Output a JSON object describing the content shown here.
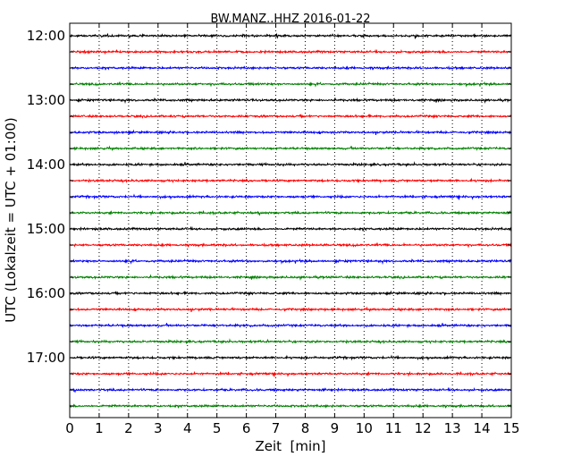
{
  "chart_data": {
    "type": "line",
    "title": "BW.MANZ..HHZ 2016-01-22",
    "xlabel": "Zeit  [min]",
    "ylabel": "UTC (Lokalzeit = UTC + 01:00)",
    "xlim": [
      0,
      15
    ],
    "x_ticks": [
      0,
      1,
      2,
      3,
      4,
      5,
      6,
      7,
      8,
      9,
      10,
      11,
      12,
      13,
      14,
      15
    ],
    "y_tick_labels": [
      "12:00",
      "13:00",
      "14:00",
      "15:00",
      "16:00",
      "17:00"
    ],
    "grid": "vertical-dotted",
    "series_colors": [
      "#000000",
      "#ff0000",
      "#0000ff",
      "#008000"
    ],
    "traces": [
      {
        "start": "12:00",
        "color": "#000000"
      },
      {
        "start": "12:15",
        "color": "#ff0000"
      },
      {
        "start": "12:30",
        "color": "#0000ff"
      },
      {
        "start": "12:45",
        "color": "#008000"
      },
      {
        "start": "13:00",
        "color": "#000000"
      },
      {
        "start": "13:15",
        "color": "#ff0000"
      },
      {
        "start": "13:30",
        "color": "#0000ff"
      },
      {
        "start": "13:45",
        "color": "#008000"
      },
      {
        "start": "14:00",
        "color": "#000000"
      },
      {
        "start": "14:15",
        "color": "#ff0000"
      },
      {
        "start": "14:30",
        "color": "#0000ff"
      },
      {
        "start": "14:45",
        "color": "#008000"
      },
      {
        "start": "15:00",
        "color": "#000000"
      },
      {
        "start": "15:15",
        "color": "#ff0000"
      },
      {
        "start": "15:30",
        "color": "#0000ff"
      },
      {
        "start": "15:45",
        "color": "#008000"
      },
      {
        "start": "16:00",
        "color": "#000000"
      },
      {
        "start": "16:15",
        "color": "#ff0000"
      },
      {
        "start": "16:30",
        "color": "#0000ff"
      },
      {
        "start": "16:45",
        "color": "#008000"
      },
      {
        "start": "17:00",
        "color": "#000000"
      },
      {
        "start": "17:15",
        "color": "#ff0000"
      },
      {
        "start": "17:30",
        "color": "#0000ff"
      },
      {
        "start": "17:45",
        "color": "#008000"
      }
    ]
  }
}
